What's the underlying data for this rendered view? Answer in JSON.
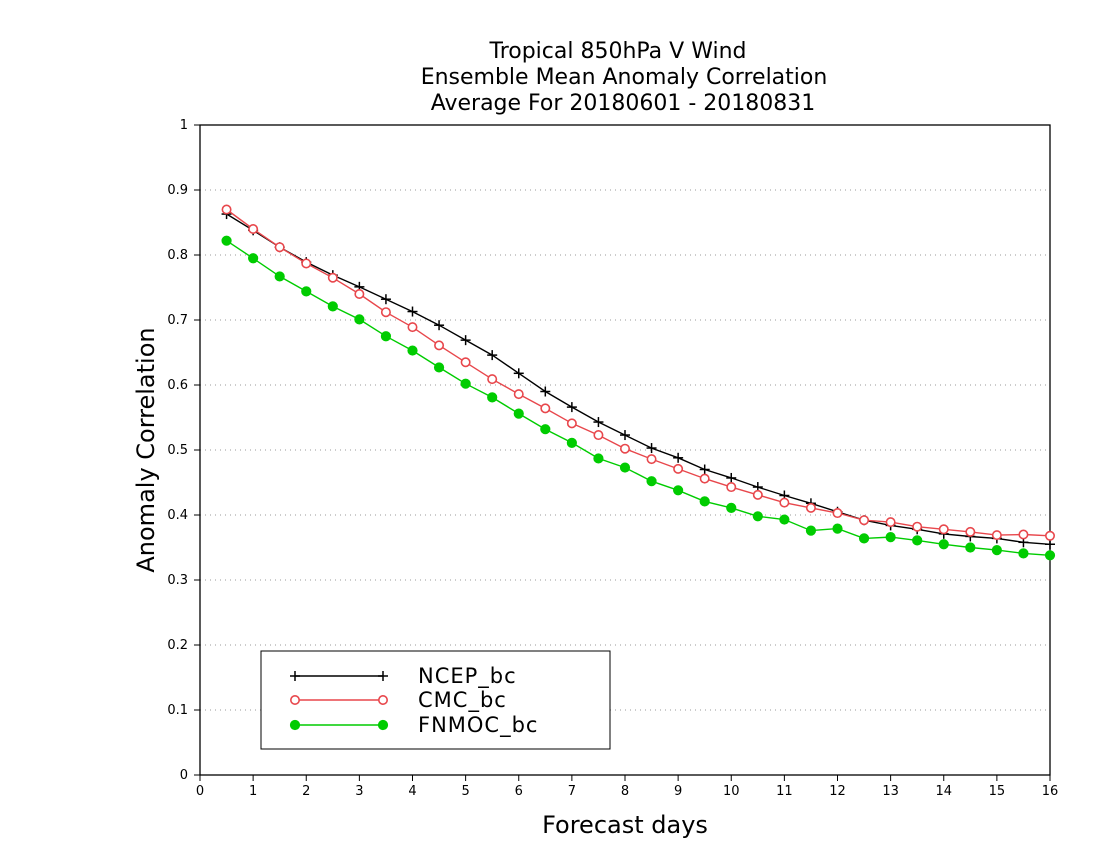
{
  "chart_data": {
    "type": "line",
    "title": [
      "Tropical 850hPa V Wind",
      "Ensemble Mean Anomaly Correlation",
      "Average For 20180601 - 20180831"
    ],
    "xlabel": "Forecast days",
    "ylabel": "Anomaly Correlation",
    "xlim": [
      0,
      16
    ],
    "ylim": [
      0,
      1
    ],
    "xticks": [
      0,
      1,
      2,
      3,
      4,
      5,
      6,
      7,
      8,
      9,
      10,
      11,
      12,
      13,
      14,
      15,
      16
    ],
    "yticks": [
      0,
      0.1,
      0.2,
      0.3,
      0.4,
      0.5,
      0.6,
      0.7,
      0.8,
      0.9,
      1
    ],
    "ytick_labels": [
      "0",
      "0.1",
      "0.2",
      "0.3",
      "0.4",
      "0.5",
      "0.6",
      "0.7",
      "0.8",
      "0.9",
      "1"
    ],
    "grid": "horizontal dotted",
    "legend_position": "bottom-left",
    "x": [
      0.5,
      1,
      1.5,
      2,
      2.5,
      3,
      3.5,
      4,
      4.5,
      5,
      5.5,
      6,
      6.5,
      7,
      7.5,
      8,
      8.5,
      9,
      9.5,
      10,
      10.5,
      11,
      11.5,
      12,
      12.5,
      13,
      13.5,
      14,
      14.5,
      15,
      15.5,
      16
    ],
    "series": [
      {
        "name": "NCEP_bc",
        "color": "#000000",
        "marker": "plus",
        "values": [
          0.863,
          0.838,
          0.812,
          0.789,
          0.769,
          0.751,
          0.732,
          0.713,
          0.692,
          0.669,
          0.646,
          0.618,
          0.59,
          0.566,
          0.543,
          0.523,
          0.503,
          0.488,
          0.47,
          0.457,
          0.443,
          0.43,
          0.418,
          0.405,
          0.392,
          0.384,
          0.378,
          0.371,
          0.367,
          0.364,
          0.358,
          0.355
        ]
      },
      {
        "name": "CMC_bc",
        "color": "#e8474c",
        "marker": "open-circle",
        "values": [
          0.87,
          0.84,
          0.812,
          0.787,
          0.765,
          0.74,
          0.712,
          0.689,
          0.661,
          0.635,
          0.609,
          0.586,
          0.564,
          0.541,
          0.523,
          0.502,
          0.486,
          0.471,
          0.456,
          0.443,
          0.431,
          0.419,
          0.411,
          0.403,
          0.392,
          0.389,
          0.382,
          0.378,
          0.374,
          0.369,
          0.37,
          0.368
        ]
      },
      {
        "name": "FNMOC_bc",
        "color": "#00cc00",
        "marker": "filled-circle",
        "values": [
          0.822,
          0.795,
          0.767,
          0.744,
          0.721,
          0.701,
          0.675,
          0.653,
          0.627,
          0.602,
          0.581,
          0.556,
          0.532,
          0.511,
          0.487,
          0.473,
          0.452,
          0.438,
          0.421,
          0.411,
          0.398,
          0.393,
          0.376,
          0.379,
          0.364,
          0.366,
          0.361,
          0.355,
          0.35,
          0.346,
          0.341,
          0.338
        ]
      }
    ]
  }
}
